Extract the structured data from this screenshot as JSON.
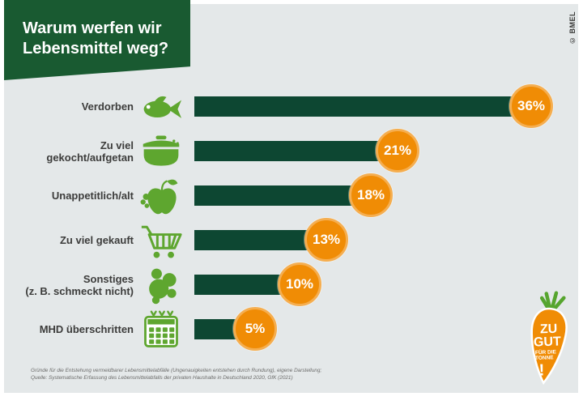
{
  "title": {
    "line1": "Warum werfen wir",
    "line2": "Lebensmittel weg?"
  },
  "credit": "© BMEL",
  "chart_data": {
    "type": "bar",
    "orientation": "horizontal",
    "title": "Warum werfen wir Lebensmittel weg?",
    "unit": "%",
    "xlim": [
      0,
      40
    ],
    "grid": false,
    "legend": false,
    "categories": [
      "Verdorben",
      "Zu viel gekocht/aufgetan",
      "Unappetitlich/alt",
      "Zu viel gekauft",
      "Sonstiges (z. B. schmeckt nicht)",
      "MHD überschritten"
    ],
    "values": [
      36,
      21,
      18,
      13,
      10,
      5
    ],
    "value_labels": [
      "36%",
      "21%",
      "18%",
      "13%",
      "10%",
      "5%"
    ],
    "rows": [
      {
        "label_lines": [
          "Verdorben"
        ],
        "icon": "fish-icon",
        "value": 36,
        "value_label": "36%"
      },
      {
        "label_lines": [
          "Zu viel",
          "gekocht/aufgetan"
        ],
        "icon": "pot-icon",
        "value": 21,
        "value_label": "21%"
      },
      {
        "label_lines": [
          "Unappetitlich/alt"
        ],
        "icon": "apple-icon",
        "value": 18,
        "value_label": "18%"
      },
      {
        "label_lines": [
          "Zu viel gekauft"
        ],
        "icon": "cart-icon",
        "value": 13,
        "value_label": "13%"
      },
      {
        "label_lines": [
          "Sonstiges",
          "(z. B. schmeckt nicht)"
        ],
        "icon": "blobs-icon",
        "value": 10,
        "value_label": "10%"
      },
      {
        "label_lines": [
          "MHD überschritten"
        ],
        "icon": "calendar-icon",
        "value": 5,
        "value_label": "5%"
      }
    ],
    "colors": {
      "bar": "#0d4732",
      "icon": "#5ea62f",
      "badge": "#f08c05",
      "badge_ring": "#f5ae50",
      "panel_bg": "#e4e8e9",
      "title_bg": "#195a31",
      "label_text": "#3c3c3b"
    }
  },
  "footer": {
    "line1": "Gründe für die Entstehung vermeidbarer Lebensmittelabfälle (Ungenauigkeiten entstehen durch Rundung), eigene Darstellung;",
    "line2": "Quelle: Systematische Erfassung des Lebensmittelabfalls der privaten Haushalte in Deutschland 2020, GfK (2021)"
  },
  "logo": {
    "line1": "ZU",
    "line2": "GUT",
    "line3": "FÜR DIE",
    "line4": "TONNE",
    "line5": "!"
  }
}
